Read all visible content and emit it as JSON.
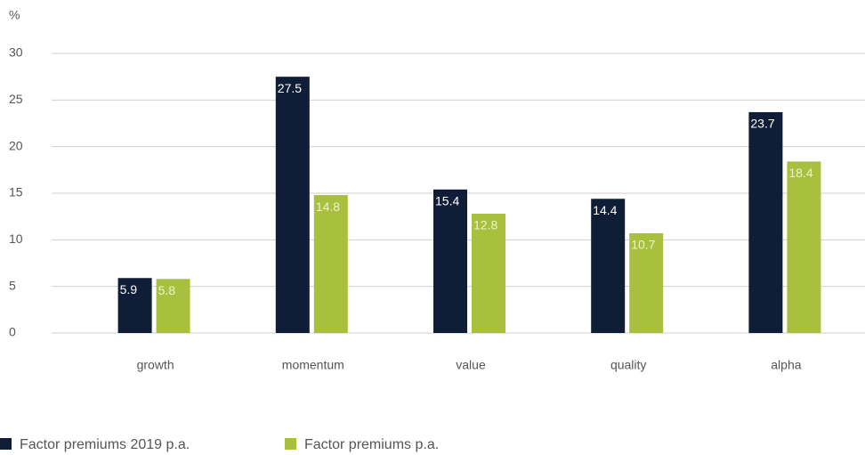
{
  "chart_data": {
    "type": "bar",
    "y_label": "%",
    "categories": [
      "growth",
      "momentum",
      "value",
      "quality",
      "alpha"
    ],
    "series": [
      {
        "name": "Factor premiums 2019 p.a.",
        "color": "#0f1e36",
        "values": [
          5.9,
          27.5,
          15.4,
          14.4,
          23.7
        ]
      },
      {
        "name": "Factor premiums p.a.",
        "color": "#a8c03e",
        "values": [
          5.8,
          14.8,
          12.8,
          10.7,
          18.4
        ]
      }
    ],
    "ylim": [
      0,
      30
    ],
    "yticks": [
      0,
      5,
      10,
      15,
      20,
      25,
      30
    ],
    "grid": true,
    "legend": "bottom-left"
  }
}
